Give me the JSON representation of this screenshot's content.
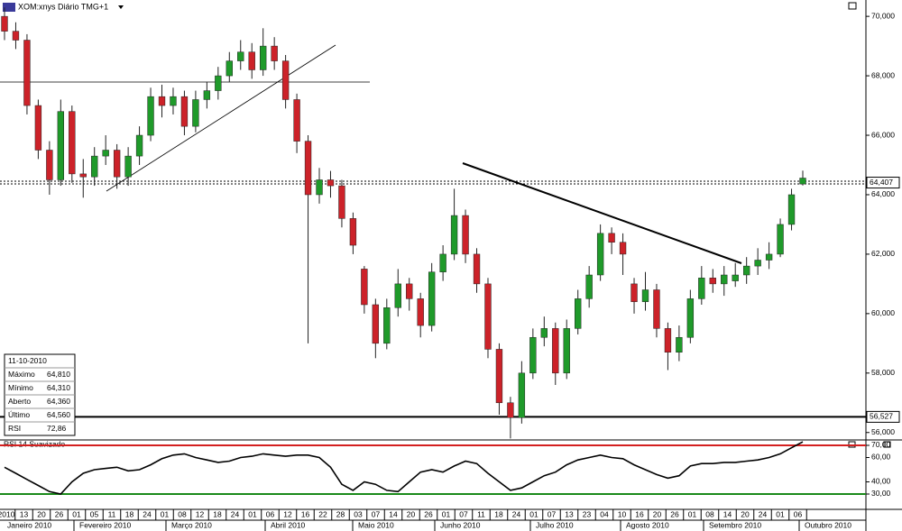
{
  "chart_data": [
    {
      "type": "candlestick",
      "title": "XOM:xnys Diário TMG+1",
      "open": [
        70.0,
        69.5,
        69.2,
        67.0,
        65.5,
        64.5,
        66.8,
        64.7,
        64.6,
        65.3,
        65.5,
        64.6,
        65.3,
        66.0,
        67.3,
        67.0,
        67.3,
        66.3,
        67.2,
        67.5,
        68.0,
        68.5,
        68.8,
        68.2,
        69.0,
        68.5,
        67.2,
        65.8,
        64.0,
        64.5,
        64.3,
        63.2,
        61.5,
        60.3,
        59.0,
        60.2,
        61.0,
        60.5,
        59.6,
        61.4,
        62.0,
        63.3,
        62.0,
        61.0,
        58.8,
        57.0,
        56.5,
        58.0,
        59.2,
        59.5,
        58.0,
        59.5,
        60.5,
        61.3,
        62.7,
        62.4,
        61.0,
        60.4,
        60.8,
        59.5,
        58.7,
        59.2,
        60.5,
        61.2,
        61.0,
        61.1,
        61.3,
        61.6,
        61.8,
        62.0,
        63.0,
        64.36
      ],
      "high": [
        70.3,
        69.8,
        69.4,
        67.2,
        65.8,
        67.2,
        67.0,
        65.2,
        65.6,
        66.0,
        65.7,
        65.6,
        66.3,
        67.6,
        67.7,
        67.6,
        67.5,
        67.5,
        67.8,
        68.3,
        68.8,
        69.2,
        69.1,
        69.6,
        69.3,
        68.7,
        67.4,
        66.0,
        64.9,
        64.8,
        64.5,
        63.4,
        61.6,
        60.5,
        60.5,
        61.5,
        61.2,
        60.7,
        61.7,
        62.3,
        64.2,
        63.5,
        62.2,
        61.2,
        59.0,
        57.2,
        58.4,
        59.5,
        59.9,
        59.7,
        59.8,
        60.8,
        61.6,
        63.0,
        62.9,
        62.7,
        61.2,
        61.4,
        61.0,
        59.7,
        59.6,
        60.8,
        61.6,
        61.5,
        61.6,
        61.7,
        61.9,
        62.2,
        62.4,
        63.2,
        64.2,
        64.81
      ],
      "low": [
        69.2,
        68.9,
        66.7,
        65.2,
        64.0,
        64.3,
        64.4,
        63.9,
        64.3,
        65.0,
        64.2,
        64.3,
        65.0,
        65.8,
        66.6,
        66.7,
        66.0,
        66.1,
        66.9,
        67.2,
        67.8,
        68.2,
        67.9,
        68.0,
        68.2,
        66.9,
        65.4,
        59.0,
        63.7,
        63.9,
        62.9,
        62.0,
        60.0,
        58.5,
        58.8,
        59.9,
        60.1,
        59.2,
        59.4,
        61.1,
        61.8,
        61.7,
        60.7,
        58.5,
        56.6,
        55.8,
        56.3,
        57.8,
        58.9,
        57.6,
        57.8,
        59.3,
        60.2,
        61.1,
        62.0,
        61.3,
        60.0,
        60.1,
        59.2,
        58.1,
        58.4,
        59.0,
        60.3,
        60.7,
        60.6,
        60.9,
        61.0,
        61.3,
        61.5,
        61.9,
        62.8,
        64.31
      ],
      "close": [
        69.5,
        69.2,
        67.0,
        65.5,
        64.5,
        66.8,
        64.7,
        64.6,
        65.3,
        65.5,
        64.6,
        65.3,
        66.0,
        67.3,
        67.0,
        67.3,
        66.3,
        67.2,
        67.5,
        68.0,
        68.5,
        68.8,
        68.2,
        69.0,
        68.5,
        67.2,
        65.8,
        64.0,
        64.5,
        64.3,
        63.2,
        62.3,
        60.3,
        59.0,
        60.2,
        61.0,
        60.5,
        59.6,
        61.4,
        62.0,
        63.3,
        62.0,
        61.0,
        58.8,
        57.0,
        56.5,
        58.0,
        59.2,
        59.5,
        58.0,
        59.5,
        60.5,
        61.3,
        62.7,
        62.4,
        62.0,
        60.4,
        60.8,
        59.5,
        58.7,
        59.2,
        60.5,
        61.2,
        61.0,
        61.3,
        61.3,
        61.6,
        61.8,
        62.0,
        63.0,
        64.0,
        64.56
      ],
      "up_color": "#1f9a2a",
      "down_color": "#cc2229",
      "ylim": [
        55.75,
        70.55
      ],
      "yticks": [
        {
          "value": 56,
          "label": "56,000"
        },
        {
          "value": 58,
          "label": "58,000"
        },
        {
          "value": 60,
          "label": "60,000"
        },
        {
          "value": 62,
          "label": "62,000"
        },
        {
          "value": 64,
          "label": "64,000"
        },
        {
          "value": 66,
          "label": "66,000"
        },
        {
          "value": 68,
          "label": "68,000"
        },
        {
          "value": 70,
          "label": "70,000"
        }
      ],
      "levels": [
        {
          "value": 64.407,
          "label": "64,407",
          "style": "dotted"
        },
        {
          "value": 56.527,
          "label": "56,527",
          "style": "solid"
        }
      ],
      "info_box": {
        "date": "11-10-2010",
        "rows": [
          [
            "Máximo",
            "64,810"
          ],
          [
            "Mínimo",
            "64,310"
          ],
          [
            "Aberto",
            "64,360"
          ],
          [
            "Último",
            "64,560"
          ],
          [
            "RSI",
            "72,86"
          ]
        ]
      },
      "x_day_labels": [
        "2010",
        "13",
        "20",
        "26",
        "01",
        "05",
        "11",
        "18",
        "24",
        "01",
        "08",
        "12",
        "18",
        "24",
        "01",
        "06",
        "12",
        "16",
        "22",
        "28",
        "03",
        "07",
        "14",
        "20",
        "26",
        "01",
        "07",
        "11",
        "18",
        "24",
        "01",
        "07",
        "13",
        "23",
        "04",
        "10",
        "16",
        "20",
        "26",
        "01",
        "08",
        "14",
        "20",
        "24",
        "01",
        "06"
      ],
      "x_month_labels": [
        "Janeiro 2010",
        "Fevereiro 2010",
        "Março 2010",
        "Abril 2010",
        "Maio 2010",
        "Junho 2010",
        "Julho 2010",
        "Agosto 2010",
        "Setembro 2010",
        "Outubro 2010"
      ]
    },
    {
      "type": "line",
      "title": "RSI 14 Suavizado",
      "color": "#000000",
      "values": [
        52,
        47,
        42,
        37,
        32,
        30,
        40,
        47,
        50,
        51,
        52,
        49,
        50,
        54,
        59,
        62,
        63,
        60,
        58,
        56,
        57,
        60,
        61,
        63,
        62,
        61,
        62,
        62,
        60,
        52,
        38,
        33,
        40,
        38,
        33,
        32,
        40,
        48,
        50,
        48,
        53,
        57,
        55,
        47,
        40,
        33,
        35,
        40,
        45,
        48,
        54,
        58,
        60,
        62,
        60,
        59,
        54,
        50,
        46,
        43,
        45,
        53,
        55,
        55,
        56,
        56,
        57,
        58,
        60,
        63,
        68,
        72.86
      ],
      "ylim": [
        17.4,
        73.7
      ],
      "yticks": [
        {
          "value": 70,
          "label": "70,00"
        },
        {
          "value": 60,
          "label": "60,00"
        },
        {
          "value": 40,
          "label": "40,00"
        },
        {
          "value": 30,
          "label": "30,00"
        }
      ],
      "levels": [
        {
          "value": 70,
          "color": "#d42020"
        },
        {
          "value": 30,
          "color": "#1a8a1a"
        }
      ]
    }
  ]
}
